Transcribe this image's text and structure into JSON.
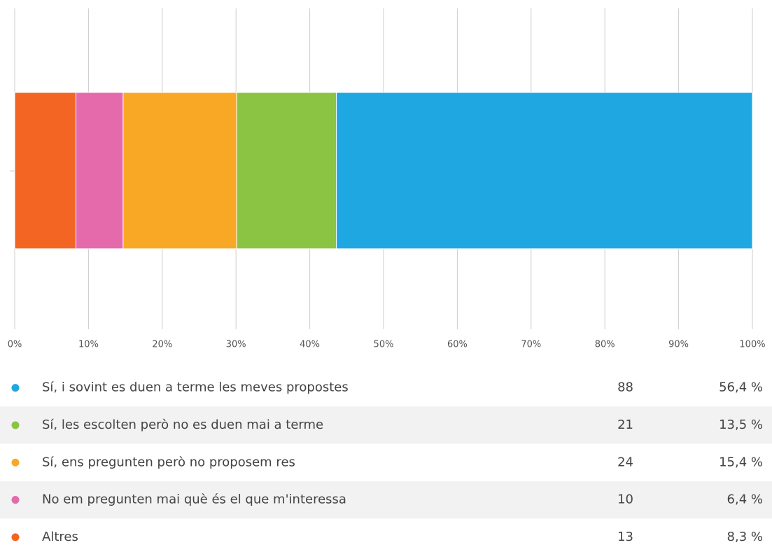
{
  "chart_data": {
    "type": "stacked_bar_100",
    "xlim": [
      0,
      100
    ],
    "xticks": [
      {
        "value": 0,
        "label": "0%"
      },
      {
        "value": 10,
        "label": "10%"
      },
      {
        "value": 20,
        "label": "20%"
      },
      {
        "value": 30,
        "label": "30%"
      },
      {
        "value": 40,
        "label": "40%"
      },
      {
        "value": 50,
        "label": "50%"
      },
      {
        "value": 60,
        "label": "60%"
      },
      {
        "value": 70,
        "label": "70%"
      },
      {
        "value": 80,
        "label": "80%"
      },
      {
        "value": 90,
        "label": "90%"
      },
      {
        "value": 100,
        "label": "100%"
      }
    ],
    "grid": true,
    "series": [
      {
        "name": "Sí, i sovint es duen a terme les meves propostes",
        "color": "#1ea7e0",
        "values": [
          56.4
        ],
        "value_labels": [
          "56,4 %"
        ],
        "count": 88
      },
      {
        "name": "Sí, les escolten però no es duen mai a terme",
        "color": "#8bc443",
        "values": [
          13.5
        ],
        "value_labels": [
          "13,5 %"
        ],
        "count": 21
      },
      {
        "name": "Sí, ens pregunten però no proposem res",
        "color": "#f9a825",
        "values": [
          15.4
        ],
        "value_labels": [
          "15,4 %"
        ],
        "count": 24
      },
      {
        "name": "No em pregunten mai què és el que m'interessa",
        "color": "#e46aab",
        "values": [
          6.4
        ],
        "value_labels": [
          "6,4 %"
        ],
        "count": 10
      },
      {
        "name": "Altres",
        "color": "#f26522",
        "values": [
          8.3
        ],
        "value_labels": [
          "8,3 %"
        ],
        "count": 13
      }
    ]
  }
}
